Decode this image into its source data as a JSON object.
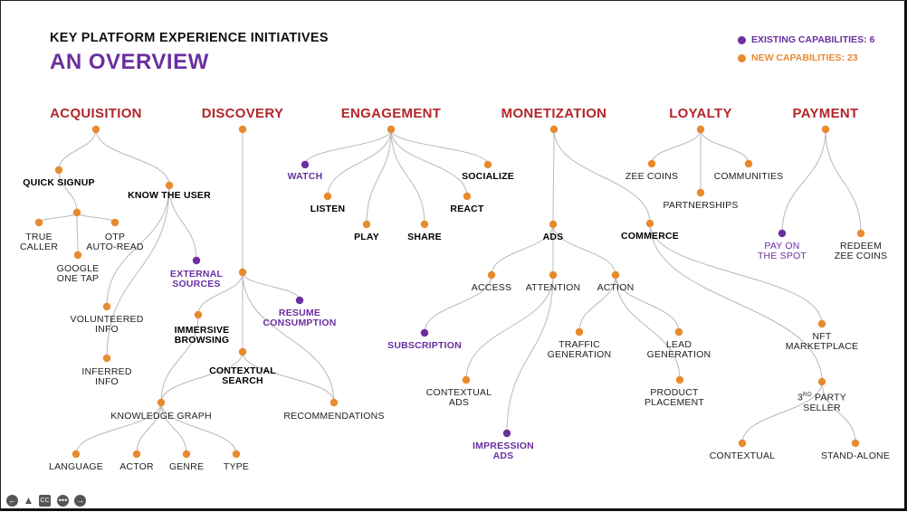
{
  "title": "KEY PLATFORM EXPERIENCE INITIATIVES",
  "subtitle": "AN OVERVIEW",
  "legend": {
    "existing": "EXISTING CAPABILITIES: 6",
    "new": "NEW CAPABILITIES: 23"
  },
  "colors": {
    "existing": "#6b2fa0",
    "new": "#e88a2e",
    "heading": "#b3262a",
    "line": "#b9b9b9"
  },
  "categories": {
    "acquisition": "ACQUISITION",
    "discovery": "DISCOVERY",
    "engagement": "ENGAGEMENT",
    "monetization": "MONETIZATION",
    "loyalty": "LOYALTY",
    "payment": "PAYMENT"
  },
  "nodes": {
    "quick_signup": "QUICK SIGNUP",
    "know_the_user": "KNOW THE USER",
    "true_caller": [
      "TRUE",
      "CALLER"
    ],
    "otp_auto_read": [
      "OTP",
      "AUTO-READ"
    ],
    "google_one_tap": [
      "GOOGLE",
      "ONE TAP"
    ],
    "external_sources": [
      "EXTERNAL",
      "SOURCES"
    ],
    "volunteered_info": [
      "VOLUNTEERED",
      "INFO"
    ],
    "inferred_info": [
      "INFERRED",
      "INFO"
    ],
    "resume_consumption": [
      "RESUME",
      "CONSUMPTION"
    ],
    "immersive_browsing": [
      "IMMERSIVE",
      "BROWSING"
    ],
    "contextual_search": [
      "CONTEXTUAL",
      "SEARCH"
    ],
    "knowledge_graph": "KNOWLEDGE GRAPH",
    "recommendations": "RECOMMENDATIONS",
    "language": "LANGUAGE",
    "actor": "ACTOR",
    "genre": "GENRE",
    "type": "TYPE",
    "watch": "WATCH",
    "socialize": "SOCIALIZE",
    "listen": "LISTEN",
    "react": "REACT",
    "play": "PLAY",
    "share": "SHARE",
    "ads": "ADS",
    "commerce": "COMMERCE",
    "access": "ACCESS",
    "attention": "ATTENTION",
    "action": "ACTION",
    "subscription": "SUBSCRIPTION",
    "traffic_generation": [
      "TRAFFIC",
      "GENERATION"
    ],
    "lead_generation": [
      "LEAD",
      "GENERATION"
    ],
    "contextual_ads": [
      "CONTEXTUAL",
      "ADS"
    ],
    "product_placement": [
      "PRODUCT",
      "PLACEMENT"
    ],
    "impression_ads": [
      "IMPRESSION",
      "ADS"
    ],
    "nft_marketplace": [
      "NFT",
      "MARKETPLACE"
    ],
    "third_party_seller": [
      "3",
      "RD",
      " PARTY",
      "SELLER"
    ],
    "contextual": "CONTEXTUAL",
    "stand_alone": "STAND-ALONE",
    "zee_coins": "ZEE COINS",
    "communities": "COMMUNITIES",
    "partnerships": "PARTNERSHIPS",
    "pay_on_the_spot": [
      "PAY ON",
      "THE SPOT"
    ],
    "redeem_zee_coins": [
      "REDEEM",
      "ZEE COINS"
    ]
  },
  "player_controls": [
    "back-icon",
    "pen-icon",
    "captions-icon",
    "more-icon",
    "forward-icon"
  ]
}
